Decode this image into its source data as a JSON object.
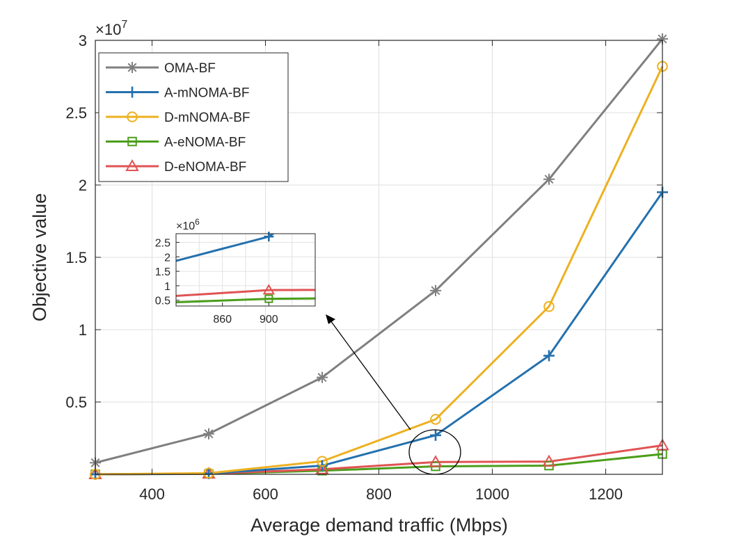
{
  "chart_data": {
    "type": "line",
    "xlabel": "Average demand traffic (Mbps)",
    "ylabel": "Objective value",
    "y_exponent_label": "×10",
    "y_exponent": "7",
    "xlim": [
      300,
      1300
    ],
    "ylim": [
      0,
      3
    ],
    "x_ticks": [
      400,
      600,
      800,
      1000,
      1200
    ],
    "y_ticks": [
      0.5,
      1,
      1.5,
      2,
      2.5,
      3
    ],
    "y_tick_labels": [
      "0.5",
      "1",
      "1.5",
      "2",
      "2.5",
      "3"
    ],
    "grid": true,
    "legend_position": "top-left",
    "x": [
      300,
      500,
      700,
      900,
      1100,
      1300
    ],
    "series": [
      {
        "name": "OMA-BF",
        "color": "#7f7f7f",
        "marker": "asterisk",
        "values": [
          0.08,
          0.28,
          0.67,
          1.27,
          2.04,
          3.01
        ]
      },
      {
        "name": "A-mNOMA-BF",
        "color": "#2471ae",
        "marker": "plus",
        "values": [
          0.0,
          0.005,
          0.06,
          0.27,
          0.82,
          1.95
        ]
      },
      {
        "name": "D-mNOMA-BF",
        "color": "#edb120",
        "marker": "circle",
        "values": [
          0.0,
          0.008,
          0.09,
          0.38,
          1.16,
          2.82
        ]
      },
      {
        "name": "A-eNOMA-BF",
        "color": "#4a9e1a",
        "marker": "square",
        "values": [
          0.0,
          0.003,
          0.025,
          0.055,
          0.06,
          0.14
        ]
      },
      {
        "name": "D-eNOMA-BF",
        "color": "#e05353",
        "marker": "triangle",
        "values": [
          0.0,
          0.004,
          0.035,
          0.085,
          0.088,
          0.2
        ]
      }
    ],
    "inset": {
      "y_exponent_label": "×10",
      "y_exponent": "6",
      "xlim": [
        820,
        940
      ],
      "ylim": [
        0.3,
        2.8
      ],
      "x_ticks": [
        860,
        900
      ],
      "y_ticks": [
        0.5,
        1,
        1.5,
        2,
        2.5
      ],
      "y_tick_labels": [
        "0.5",
        "1",
        "1.5",
        "2",
        "2.5"
      ]
    }
  }
}
